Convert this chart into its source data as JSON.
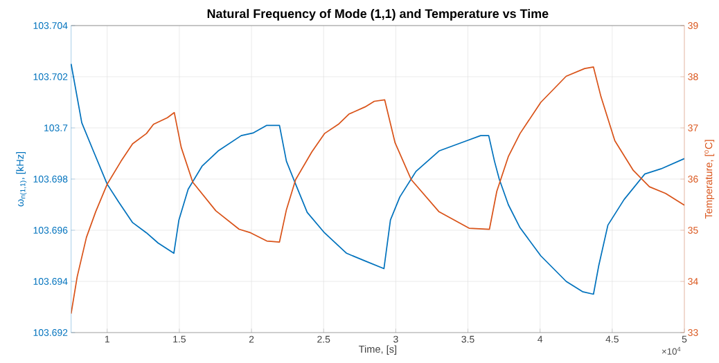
{
  "chart_data": {
    "type": "line",
    "title": "Natural Frequency of Mode (1,1) and Temperature vs Time",
    "xlabel": "Time, [s]",
    "ylabel": "ω$_{n(1,1)}$, [kHz]",
    "y2label": "Temperature, [$^{o}$C]",
    "annotations": [
      "×10$^{4}$"
    ],
    "xlim": [
      0.75,
      5
    ],
    "xticks": [
      1,
      1.5,
      2,
      2.5,
      3,
      3.5,
      4,
      4.5,
      5
    ],
    "ylim": [
      103.692,
      103.704
    ],
    "yticks": [
      103.692,
      103.694,
      103.696,
      103.698,
      103.7,
      103.702,
      103.704
    ],
    "y2lim": [
      33,
      39
    ],
    "y2ticks": [
      33,
      34,
      35,
      36,
      37,
      38,
      39
    ],
    "grid": true,
    "series": [
      {
        "color": "#0072bd",
        "x": [
          0.75,
          0.824,
          0.904,
          1.0,
          1.08,
          1.176,
          1.272,
          1.353,
          1.462,
          1.497,
          1.561,
          1.657,
          1.769,
          1.929,
          2.01,
          2.106,
          2.194,
          2.242,
          2.306,
          2.386,
          2.506,
          2.659,
          2.787,
          2.918,
          2.963,
          3.028,
          3.14,
          3.3,
          3.492,
          3.588,
          3.644,
          3.684,
          3.717,
          3.78,
          3.861,
          4.005,
          4.181,
          4.294,
          4.37,
          4.406,
          4.47,
          4.582,
          4.726,
          4.838,
          5.0
        ],
        "values": [
          103.7025,
          103.7002,
          103.6991,
          103.6978,
          103.6971,
          103.6963,
          103.6959,
          103.6955,
          103.6951,
          103.6964,
          103.6976,
          103.6985,
          103.6991,
          103.6997,
          103.6998,
          103.7001,
          103.7001,
          103.6987,
          103.6978,
          103.6967,
          103.6959,
          103.6951,
          103.6948,
          103.6945,
          103.6964,
          103.6973,
          103.6983,
          103.6991,
          103.6995,
          103.6997,
          103.6997,
          103.6987,
          103.698,
          103.697,
          103.6961,
          103.695,
          103.694,
          103.6936,
          103.6935,
          103.6946,
          103.6962,
          103.6972,
          103.6982,
          103.6984,
          103.6988
        ]
      },
      {
        "color": "#d95319",
        "axis": "y2",
        "x": [
          0.75,
          0.792,
          0.856,
          0.92,
          1.0,
          1.096,
          1.176,
          1.272,
          1.321,
          1.417,
          1.465,
          1.513,
          1.593,
          1.753,
          1.914,
          1.994,
          2.106,
          2.194,
          2.242,
          2.306,
          2.418,
          2.506,
          2.602,
          2.675,
          2.787,
          2.851,
          2.923,
          2.995,
          3.107,
          3.3,
          3.508,
          3.649,
          3.7,
          3.78,
          3.861,
          4.005,
          4.181,
          4.309,
          4.37,
          4.422,
          4.518,
          4.646,
          4.758,
          4.87,
          5.0
        ],
        "values": [
          33.37,
          34.09,
          34.86,
          35.36,
          35.9,
          36.35,
          36.69,
          36.89,
          37.07,
          37.2,
          37.3,
          36.62,
          35.94,
          35.38,
          35.02,
          34.95,
          34.79,
          34.77,
          35.4,
          35.99,
          36.53,
          36.89,
          37.07,
          37.27,
          37.41,
          37.52,
          37.55,
          36.71,
          35.99,
          35.36,
          35.04,
          35.02,
          35.76,
          36.44,
          36.89,
          37.5,
          38.01,
          38.16,
          38.19,
          37.61,
          36.75,
          36.17,
          35.85,
          35.72,
          35.49
        ]
      }
    ]
  }
}
